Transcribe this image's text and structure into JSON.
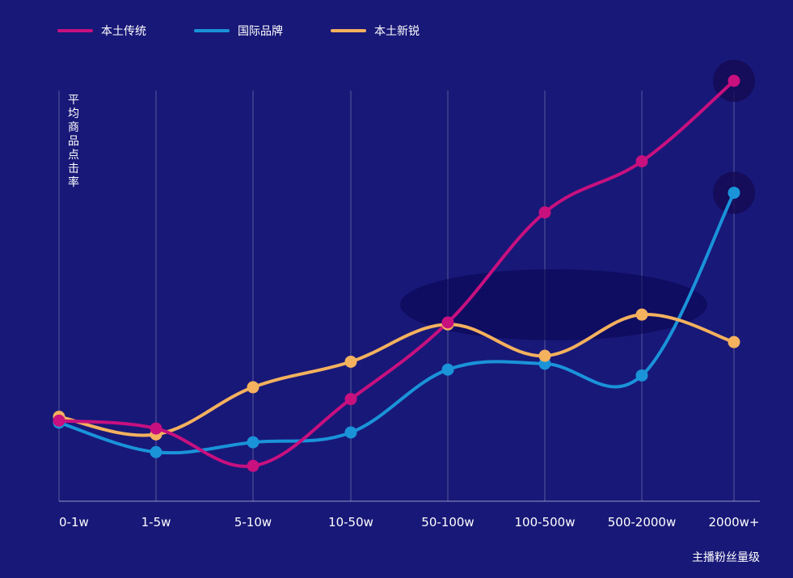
{
  "chart_data": {
    "type": "line",
    "title": "",
    "xlabel": "主播粉丝量级",
    "ylabel": "平均商品点击率",
    "categories": [
      "0-1w",
      "1-5w",
      "5-10w",
      "10-50w",
      "50-100w",
      "100-500w",
      "500-2000w",
      "2000w+"
    ],
    "ylim": [
      0,
      100
    ],
    "grid": "vertical",
    "legend_position": "top-left",
    "smooth": true,
    "series": [
      {
        "name": "本土传统",
        "color": "#c8107f",
        "values": [
          20.5,
          18.5,
          9,
          26,
          45.5,
          73.5,
          86.5,
          107
        ]
      },
      {
        "name": "国际品牌",
        "color": "#1a93d9",
        "values": [
          20,
          12.5,
          15,
          17.5,
          33.5,
          35,
          32,
          78.5
        ]
      },
      {
        "name": "本土新锐",
        "color": "#f4b15e",
        "values": [
          21.5,
          17,
          29,
          35.5,
          45,
          37,
          47.5,
          40.5
        ]
      }
    ]
  }
}
